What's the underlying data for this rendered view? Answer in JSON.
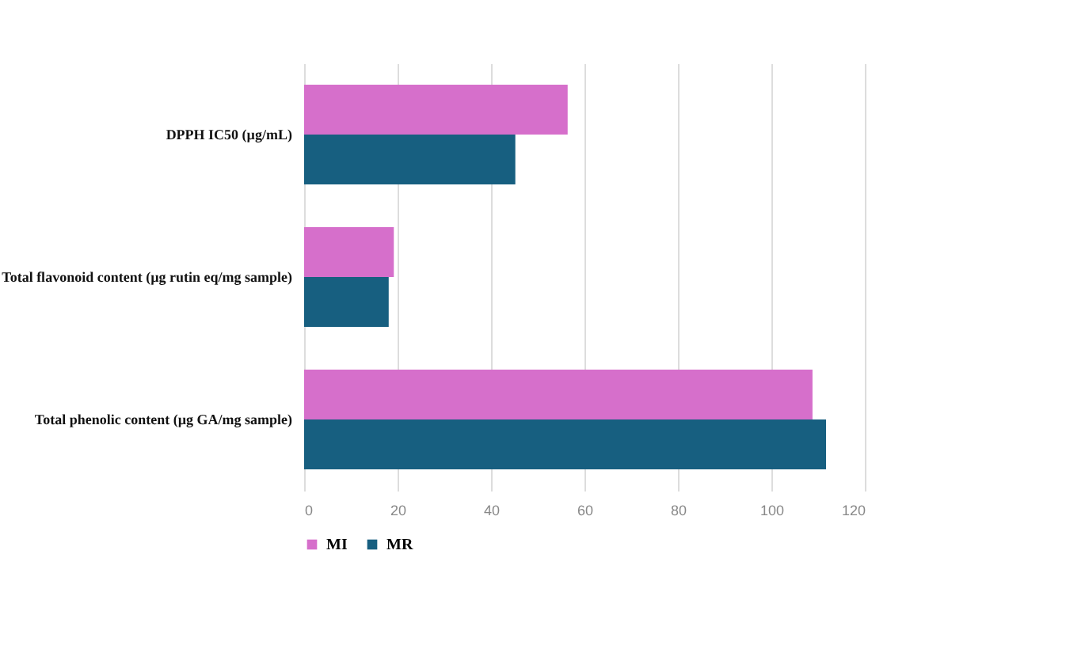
{
  "chart_data": {
    "type": "bar",
    "orientation": "horizontal",
    "categories": [
      "DPPH IC50 (µg/mL)",
      "Total flavonoid content (µg rutin eq/mg sample)",
      "Total phenolic content (µg GA/mg sample)"
    ],
    "series": [
      {
        "name": "MI",
        "color": "#d66fcb",
        "values": [
          56.4,
          19.2,
          108.8
        ]
      },
      {
        "name": "MR",
        "color": "#175f80",
        "values": [
          45.2,
          18.1,
          111.7
        ]
      }
    ],
    "xlim": [
      0,
      120
    ],
    "xticks": [
      0,
      20,
      40,
      60,
      80,
      100,
      120
    ],
    "grid": "x",
    "legend": "bottom"
  }
}
